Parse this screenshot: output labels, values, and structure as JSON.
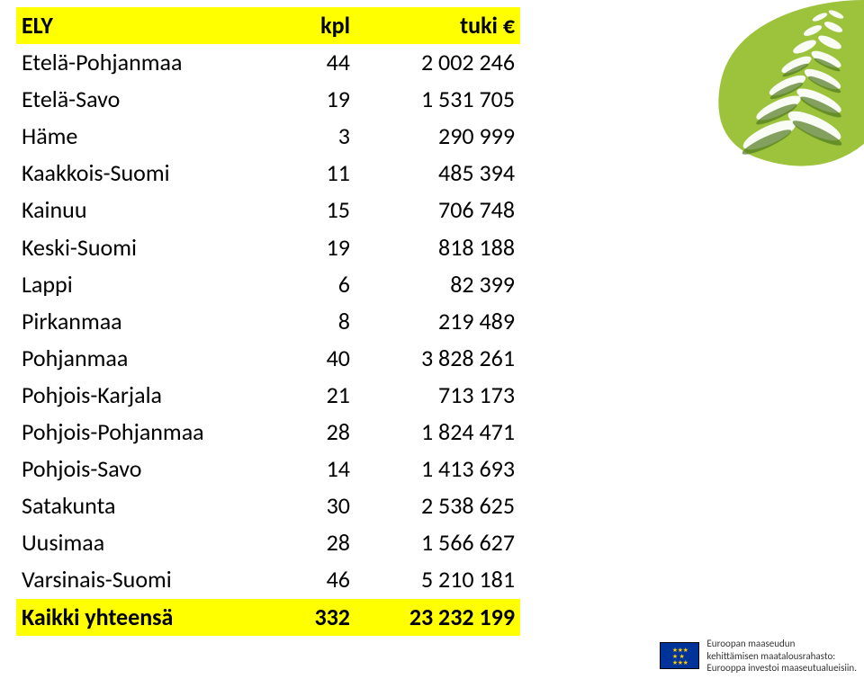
{
  "table": {
    "type": "table",
    "header_bg": "#ffff00",
    "total_bg": "#ffff00",
    "font_size": 26,
    "columns": [
      {
        "key": "ely",
        "label": "ELY",
        "align": "left"
      },
      {
        "key": "kpl",
        "label": "kpl",
        "align": "right"
      },
      {
        "key": "tuki",
        "label": "tuki €",
        "align": "right"
      }
    ],
    "rows": [
      {
        "ely": "Etelä-Pohjanmaa",
        "kpl": "44",
        "tuki": "2 002 246"
      },
      {
        "ely": "Etelä-Savo",
        "kpl": "19",
        "tuki": "1 531 705"
      },
      {
        "ely": "Häme",
        "kpl": "3",
        "tuki": "290 999"
      },
      {
        "ely": "Kaakkois-Suomi",
        "kpl": "11",
        "tuki": "485 394"
      },
      {
        "ely": "Kainuu",
        "kpl": "15",
        "tuki": "706 748"
      },
      {
        "ely": "Keski-Suomi",
        "kpl": "19",
        "tuki": "818 188"
      },
      {
        "ely": "Lappi",
        "kpl": "6",
        "tuki": "82 399"
      },
      {
        "ely": "Pirkanmaa",
        "kpl": "8",
        "tuki": "219 489"
      },
      {
        "ely": "Pohjanmaa",
        "kpl": "40",
        "tuki": "3 828 261"
      },
      {
        "ely": "Pohjois-Karjala",
        "kpl": "21",
        "tuki": "713 173"
      },
      {
        "ely": "Pohjois-Pohjanmaa",
        "kpl": "28",
        "tuki": "1 824 471"
      },
      {
        "ely": "Pohjois-Savo",
        "kpl": "14",
        "tuki": "1 413 693"
      },
      {
        "ely": "Satakunta",
        "kpl": "30",
        "tuki": "2 538 625"
      },
      {
        "ely": "Uusimaa",
        "kpl": "28",
        "tuki": "1 566 627"
      },
      {
        "ely": "Varsinais-Suomi",
        "kpl": "46",
        "tuki": "5 210 181"
      }
    ],
    "total": {
      "ely": "Kaikki yhteensä",
      "kpl": "332",
      "tuki": "23 232 199"
    }
  },
  "logo": {
    "bg": "#9cc33b",
    "light": "#ffffff",
    "dark": "#527a1f"
  },
  "footer": {
    "line1": "Euroopan maaseudun",
    "line2": "kehittämisen maatalousrahasto:",
    "line3": "Eurooppa investoi maaseutualueisiin."
  }
}
